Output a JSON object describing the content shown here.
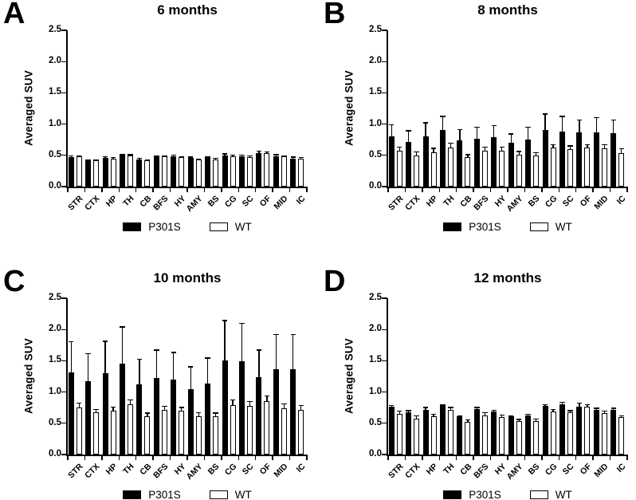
{
  "figure": {
    "ylabel": "Averaged SUV",
    "legend_labels": [
      "P301S",
      "WT"
    ],
    "colors": {
      "p301s_fill": "#000000",
      "wt_fill": "#ffffff",
      "axis": "#000000",
      "background": "#ffffff"
    }
  },
  "chart_data": [
    {
      "panel_letter": "A",
      "title": "6 months",
      "type": "bar",
      "ylabel": "Averaged SUV",
      "ylim": [
        0,
        2.5
      ],
      "yticks": [
        0.0,
        0.5,
        1.0,
        1.5,
        2.0,
        2.5
      ],
      "ytick_labels": [
        "0.0",
        "0.5",
        "1.0",
        "1.5",
        "2.0",
        "2.5"
      ],
      "grid": false,
      "legend_position": "bottom",
      "error_bars": "upper",
      "categories": [
        "STR",
        "CTX",
        "HP",
        "TH",
        "CB",
        "BFS",
        "HY",
        "AMY",
        "BS",
        "CG",
        "SC",
        "OF",
        "MID",
        "IC"
      ],
      "series": [
        {
          "name": "P301S",
          "fill": "#000000",
          "values": [
            0.47,
            0.42,
            0.46,
            0.5,
            0.43,
            0.48,
            0.48,
            0.46,
            0.46,
            0.5,
            0.48,
            0.54,
            0.49,
            0.45
          ],
          "errors": [
            0.03,
            0.02,
            0.03,
            0.02,
            0.03,
            0.02,
            0.03,
            0.02,
            0.02,
            0.03,
            0.03,
            0.04,
            0.03,
            0.03
          ]
        },
        {
          "name": "WT",
          "fill": "#ffffff",
          "values": [
            0.48,
            0.42,
            0.45,
            0.5,
            0.42,
            0.48,
            0.47,
            0.43,
            0.44,
            0.49,
            0.47,
            0.54,
            0.48,
            0.45
          ],
          "errors": [
            0.02,
            0.02,
            0.02,
            0.02,
            0.02,
            0.02,
            0.02,
            0.02,
            0.02,
            0.02,
            0.03,
            0.02,
            0.02,
            0.02
          ]
        }
      ]
    },
    {
      "panel_letter": "B",
      "title": "8 months",
      "type": "bar",
      "ylabel": "Averaged SUV",
      "ylim": [
        0,
        2.5
      ],
      "yticks": [
        0.0,
        0.5,
        1.0,
        1.5,
        2.0,
        2.5
      ],
      "ytick_labels": [
        "0.0",
        "0.5",
        "1.0",
        "1.5",
        "2.0",
        "2.5"
      ],
      "grid": false,
      "legend_position": "bottom",
      "error_bars": "upper",
      "categories": [
        "STR",
        "CTX",
        "HP",
        "TH",
        "CB",
        "BFS",
        "HY",
        "AMY",
        "BS",
        "CG",
        "SC",
        "OF",
        "MID",
        "IC"
      ],
      "series": [
        {
          "name": "P301S",
          "fill": "#000000",
          "values": [
            0.8,
            0.71,
            0.81,
            0.9,
            0.74,
            0.77,
            0.79,
            0.7,
            0.75,
            0.91,
            0.88,
            0.87,
            0.87,
            0.85
          ],
          "errors": [
            0.2,
            0.19,
            0.22,
            0.23,
            0.18,
            0.19,
            0.19,
            0.15,
            0.21,
            0.26,
            0.25,
            0.2,
            0.24,
            0.22
          ]
        },
        {
          "name": "WT",
          "fill": "#ffffff",
          "values": [
            0.58,
            0.5,
            0.55,
            0.63,
            0.47,
            0.58,
            0.58,
            0.51,
            0.5,
            0.62,
            0.6,
            0.62,
            0.61,
            0.54
          ],
          "errors": [
            0.06,
            0.06,
            0.07,
            0.07,
            0.05,
            0.06,
            0.06,
            0.06,
            0.05,
            0.06,
            0.06,
            0.06,
            0.07,
            0.07
          ]
        }
      ]
    },
    {
      "panel_letter": "C",
      "title": "10 months",
      "type": "bar",
      "ylabel": "Averaged SUV",
      "ylim": [
        0,
        2.5
      ],
      "yticks": [
        0.0,
        0.5,
        1.0,
        1.5,
        2.0,
        2.5
      ],
      "ytick_labels": [
        "0.0",
        "0.5",
        "1.0",
        "1.5",
        "2.0",
        "2.5"
      ],
      "grid": false,
      "legend_position": "bottom",
      "error_bars": "upper",
      "categories": [
        "STR",
        "CTX",
        "HP",
        "TH",
        "CB",
        "BFS",
        "HY",
        "AMY",
        "BS",
        "CG",
        "SC",
        "OF",
        "MID",
        "IC"
      ],
      "series": [
        {
          "name": "P301S",
          "fill": "#000000",
          "values": [
            1.31,
            1.17,
            1.3,
            1.45,
            1.12,
            1.22,
            1.2,
            1.04,
            1.13,
            1.51,
            1.49,
            1.24,
            1.36,
            1.37
          ],
          "errors": [
            0.5,
            0.45,
            0.52,
            0.6,
            0.41,
            0.46,
            0.44,
            0.37,
            0.42,
            0.64,
            0.62,
            0.44,
            0.57,
            0.56
          ]
        },
        {
          "name": "WT",
          "fill": "#ffffff",
          "values": [
            0.75,
            0.67,
            0.7,
            0.8,
            0.61,
            0.72,
            0.7,
            0.61,
            0.61,
            0.79,
            0.78,
            0.85,
            0.74,
            0.72
          ],
          "errors": [
            0.08,
            0.06,
            0.07,
            0.08,
            0.06,
            0.06,
            0.06,
            0.07,
            0.06,
            0.09,
            0.08,
            0.1,
            0.08,
            0.07
          ]
        }
      ]
    },
    {
      "panel_letter": "D",
      "title": "12 months",
      "type": "bar",
      "ylabel": "Averaged SUV",
      "ylim": [
        0,
        2.5
      ],
      "yticks": [
        0.0,
        0.5,
        1.0,
        1.5,
        2.0,
        2.5
      ],
      "ytick_labels": [
        "0.0",
        "0.5",
        "1.0",
        "1.5",
        "2.0",
        "2.5"
      ],
      "grid": false,
      "legend_position": "bottom",
      "error_bars": "upper",
      "categories": [
        "STR",
        "CTX",
        "HP",
        "TH",
        "CB",
        "BFS",
        "HY",
        "AMY",
        "BS",
        "CG",
        "SC",
        "OF",
        "MID",
        "IC"
      ],
      "series": [
        {
          "name": "P301S",
          "fill": "#000000",
          "values": [
            0.76,
            0.67,
            0.71,
            0.79,
            0.61,
            0.73,
            0.69,
            0.61,
            0.62,
            0.78,
            0.8,
            0.76,
            0.72,
            0.72
          ],
          "errors": [
            0.03,
            0.04,
            0.05,
            0.02,
            0.02,
            0.03,
            0.03,
            0.02,
            0.03,
            0.03,
            0.04,
            0.07,
            0.03,
            0.03
          ]
        },
        {
          "name": "WT",
          "fill": "#ffffff",
          "values": [
            0.65,
            0.58,
            0.61,
            0.71,
            0.52,
            0.63,
            0.6,
            0.53,
            0.54,
            0.69,
            0.67,
            0.76,
            0.66,
            0.6
          ],
          "errors": [
            0.05,
            0.05,
            0.04,
            0.05,
            0.04,
            0.05,
            0.04,
            0.04,
            0.04,
            0.04,
            0.04,
            0.05,
            0.04,
            0.03
          ]
        }
      ]
    }
  ]
}
